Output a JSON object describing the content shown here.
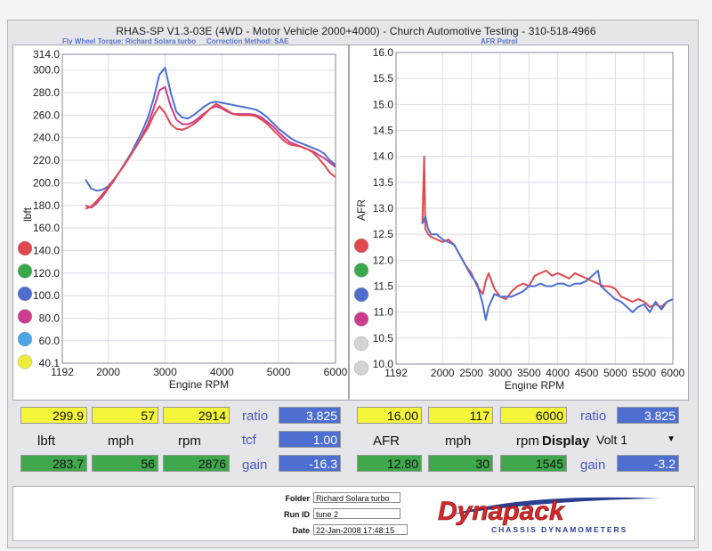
{
  "header": {
    "title": "RHAS-SP V1.3-03E  (4WD - Motor Vehicle 2000+4000) - Church Automotive Testing - 310-518-4966",
    "left_subtitle": "Fly Wheel Torque: Richard Solara turbo",
    "left_method": "Correction Method: SAE",
    "right_subtitle": "AFR Petrol"
  },
  "chart_data": [
    {
      "type": "line",
      "title": "",
      "xlabel": "Engine RPM",
      "ylabel": "lbft",
      "xlim": [
        1192,
        6000
      ],
      "ylim": [
        40.1,
        314.0
      ],
      "x_ticks": [
        "1192",
        "2000",
        "3000",
        "4000",
        "5000",
        "6000"
      ],
      "y_ticks": [
        "40.1",
        "60.0",
        "80.0",
        "100.0",
        "120.0",
        "140.0",
        "160.0",
        "180.0",
        "200.0",
        "220.0",
        "240.0",
        "260.0",
        "280.0",
        "300.0",
        "314.0"
      ],
      "grid": true,
      "legend_dots": [
        "#e04850",
        "#39a84a",
        "#4e6fcf",
        "#cc3d8e",
        "#4ca6e6",
        "#ecec3a"
      ],
      "series": [
        {
          "color": "#4e6fcf",
          "x": [
            1600,
            1700,
            1800,
            1900,
            2000,
            2100,
            2200,
            2300,
            2400,
            2500,
            2600,
            2700,
            2800,
            2900,
            3000,
            3100,
            3200,
            3300,
            3400,
            3500,
            3600,
            3700,
            3800,
            3900,
            4000,
            4100,
            4200,
            4300,
            4400,
            4500,
            4600,
            4700,
            4800,
            4900,
            5000,
            5100,
            5200,
            5300,
            5400,
            5500,
            5600,
            5700,
            5800,
            5900,
            6000
          ],
          "y": [
            203,
            195,
            193,
            194,
            197,
            203,
            210,
            218,
            226,
            236,
            246,
            258,
            275,
            296,
            302,
            280,
            263,
            258,
            257,
            260,
            264,
            268,
            271,
            272,
            271,
            270,
            269,
            268,
            267,
            266,
            265,
            262,
            258,
            253,
            248,
            244,
            240,
            237,
            235,
            233,
            231,
            229,
            226,
            220,
            216
          ]
        },
        {
          "color": "#cc3d8e",
          "x": [
            1600,
            1700,
            1800,
            1900,
            2000,
            2100,
            2200,
            2300,
            2400,
            2500,
            2600,
            2700,
            2800,
            2900,
            3000,
            3100,
            3200,
            3300,
            3400,
            3500,
            3600,
            3700,
            3800,
            3900,
            4000,
            4100,
            4200,
            4300,
            4400,
            4500,
            4600,
            4700,
            4800,
            4900,
            5000,
            5100,
            5200,
            5300,
            5400,
            5500,
            5600,
            5700,
            5800,
            5900,
            6000
          ],
          "y": [
            180,
            178,
            182,
            188,
            195,
            202,
            210,
            217,
            225,
            233,
            242,
            252,
            266,
            282,
            285,
            268,
            256,
            252,
            252,
            254,
            258,
            262,
            266,
            268,
            266,
            263,
            261,
            261,
            261,
            261,
            260,
            258,
            254,
            250,
            245,
            240,
            236,
            234,
            232,
            230,
            228,
            225,
            222,
            218,
            214
          ]
        },
        {
          "color": "#e04850",
          "x": [
            1600,
            1700,
            1800,
            1900,
            2000,
            2100,
            2200,
            2300,
            2400,
            2500,
            2600,
            2700,
            2800,
            2900,
            3000,
            3100,
            3200,
            3300,
            3400,
            3500,
            3600,
            3700,
            3800,
            3900,
            4000,
            4100,
            4200,
            4300,
            4400,
            4500,
            4600,
            4700,
            4800,
            4900,
            5000,
            5100,
            5200,
            5300,
            5400,
            5500,
            5600,
            5700,
            5800,
            5900,
            6000
          ],
          "y": [
            177,
            179,
            184,
            190,
            196,
            203,
            210,
            217,
            225,
            233,
            241,
            249,
            260,
            268,
            262,
            252,
            248,
            247,
            249,
            252,
            256,
            261,
            266,
            270,
            267,
            264,
            261,
            260,
            260,
            260,
            259,
            256,
            252,
            247,
            242,
            237,
            234,
            233,
            232,
            230,
            227,
            222,
            216,
            209,
            205
          ]
        }
      ]
    },
    {
      "type": "line",
      "title": "",
      "xlabel": "Engine RPM",
      "ylabel": "AFR",
      "xlim": [
        1192,
        6000
      ],
      "ylim": [
        10.0,
        16.0
      ],
      "x_ticks": [
        "1192",
        "2000",
        "2500",
        "3000",
        "3500",
        "4000",
        "4500",
        "5000",
        "5500",
        "6000"
      ],
      "y_ticks": [
        "10.0",
        "10.5",
        "11.0",
        "11.5",
        "12.0",
        "12.5",
        "13.0",
        "13.5",
        "14.0",
        "14.5",
        "15.0",
        "15.5",
        "16.0"
      ],
      "grid": true,
      "legend_dots": [
        "#e04850",
        "#39a84a",
        "#4e6fcf",
        "#cc3d8e",
        "#d4d4d8",
        "#d4d4d8"
      ],
      "series": [
        {
          "color": "#e04850",
          "x": [
            1650,
            1680,
            1700,
            1750,
            1800,
            1900,
            2000,
            2100,
            2200,
            2300,
            2400,
            2500,
            2600,
            2700,
            2750,
            2800,
            2900,
            3000,
            3100,
            3200,
            3300,
            3400,
            3500,
            3600,
            3700,
            3800,
            3900,
            4000,
            4100,
            4200,
            4300,
            4400,
            4500,
            4600,
            4700,
            4800,
            4900,
            5000,
            5100,
            5200,
            5300,
            5400,
            5500,
            5600,
            5700,
            5800,
            5900,
            6000
          ],
          "y": [
            12.7,
            14.0,
            12.6,
            12.5,
            12.45,
            12.4,
            12.35,
            12.4,
            12.3,
            12.1,
            11.9,
            11.75,
            11.5,
            11.35,
            11.6,
            11.75,
            11.45,
            11.3,
            11.25,
            11.4,
            11.5,
            11.55,
            11.5,
            11.7,
            11.75,
            11.8,
            11.7,
            11.75,
            11.7,
            11.65,
            11.75,
            11.7,
            11.65,
            11.6,
            11.55,
            11.5,
            11.5,
            11.45,
            11.3,
            11.25,
            11.2,
            11.25,
            11.2,
            11.1,
            11.15,
            11.1,
            11.2,
            11.25
          ]
        },
        {
          "color": "#4e6fcf",
          "x": [
            1650,
            1700,
            1750,
            1800,
            1900,
            2000,
            2100,
            2200,
            2300,
            2400,
            2500,
            2600,
            2700,
            2750,
            2800,
            2900,
            3000,
            3100,
            3200,
            3300,
            3400,
            3500,
            3600,
            3700,
            3800,
            3900,
            4000,
            4100,
            4200,
            4300,
            4400,
            4500,
            4600,
            4700,
            4750,
            4800,
            4900,
            5000,
            5100,
            5200,
            5300,
            5400,
            5500,
            5600,
            5700,
            5800,
            5900,
            6000
          ],
          "y": [
            12.7,
            12.85,
            12.6,
            12.5,
            12.5,
            12.4,
            12.35,
            12.3,
            12.1,
            11.9,
            11.7,
            11.55,
            11.15,
            10.85,
            11.1,
            11.35,
            11.3,
            11.3,
            11.3,
            11.35,
            11.4,
            11.5,
            11.5,
            11.55,
            11.5,
            11.5,
            11.55,
            11.55,
            11.5,
            11.55,
            11.55,
            11.6,
            11.7,
            11.8,
            11.5,
            11.45,
            11.35,
            11.25,
            11.2,
            11.1,
            11.0,
            11.1,
            11.15,
            11.0,
            11.2,
            11.05,
            11.2,
            11.25
          ]
        }
      ]
    }
  ],
  "left_readout": {
    "max_torque": "299.9",
    "max_speed": "57",
    "max_rpm": "2914",
    "unit_torque": "lbft",
    "unit_speed": "mph",
    "unit_rpm": "rpm",
    "cur_torque": "283.7",
    "cur_speed": "56",
    "cur_rpm": "2876",
    "ratio_label": "ratio",
    "ratio_value": "3.825",
    "tcf_label": "tcf",
    "tcf_value": "1.00",
    "gain_label": "gain",
    "gain_value": "-16.3"
  },
  "right_readout": {
    "max_afr": "16.00",
    "max_speed": "117",
    "max_rpm": "6000",
    "unit_afr": "AFR",
    "unit_speed": "mph",
    "unit_rpm": "rpm",
    "cur_afr": "12.80",
    "cur_speed": "30",
    "cur_rpm": "1545",
    "ratio_label": "ratio",
    "ratio_value": "3.825",
    "display_label": "Display",
    "display_value": "Volt 1",
    "gain_label": "gain",
    "gain_value": "-3.2"
  },
  "footer": {
    "folder_label": "Folder",
    "folder_value": "Richard Solara turbo",
    "runid_label": "Run ID",
    "runid_value": "tune 2",
    "date_label": "Date",
    "date_value": "22-Jan-2008  17:48:15",
    "logo_text": "Dynapack",
    "logo_tagline": "CHASSIS  DYNAMOMETERS"
  }
}
